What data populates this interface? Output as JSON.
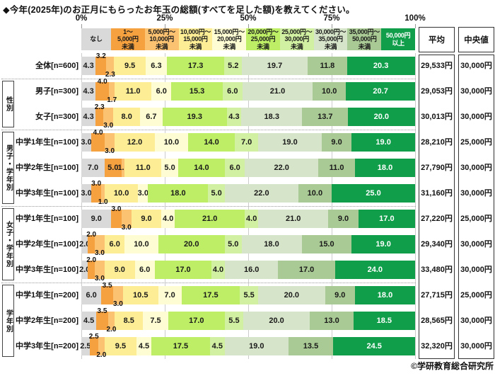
{
  "title": "◆今年(2025年)のお正月にもらったお年玉の総額(すべてを足した額)を教えてください。",
  "footer": "©学研教育総合研究所",
  "columns": {
    "mean": "平均",
    "median": "中央値"
  },
  "axis": {
    "ticks": [
      "0%",
      "25%",
      "50%",
      "75%",
      "100%"
    ]
  },
  "chart_data": {
    "type": "bar",
    "stacked": true,
    "orientation": "horizontal",
    "unit": "%",
    "xlim": [
      0,
      100
    ],
    "legend": [
      {
        "label": "なし",
        "color": "#d9d9d9",
        "text_color": "#1a1a1a"
      },
      {
        "label": "1～\n5,000円\n未満",
        "color": "#f6a13f",
        "text_color": "#1a1a1a"
      },
      {
        "label": "5,000円～\n10,000円\n未満",
        "color": "#fbc271",
        "text_color": "#1a1a1a"
      },
      {
        "label": "10,000円～\n15,000円\n未満",
        "color": "#fdee96",
        "text_color": "#1a1a1a"
      },
      {
        "label": "15,000円～\n20,000円\n未満",
        "color": "#fdfcd2",
        "text_color": "#1a1a1a"
      },
      {
        "label": "20,000円～\n25,000円\n未満",
        "color": "#bdee66",
        "text_color": "#1a1a1a"
      },
      {
        "label": "25,000円～\n30,000円\n未満",
        "color": "#d2f0a2",
        "text_color": "#1a1a1a"
      },
      {
        "label": "30,000円～\n35,000円\n未満",
        "color": "#d6e4c9",
        "text_color": "#1a1a1a"
      },
      {
        "label": "35,000円～\n50,000円\n未満",
        "color": "#a9ca94",
        "text_color": "#1a1a1a"
      },
      {
        "label": "50,000円\n以上",
        "color": "#119e4b",
        "text_color": "#ffffff",
        "value_color": "#ffffff"
      }
    ],
    "groups": [
      {
        "label": "",
        "rows": [
          {
            "label": "全体[n=600]",
            "values": [
              4.3,
              3.2,
              2.3,
              9.5,
              6.3,
              17.3,
              5.2,
              19.7,
              11.8,
              20.3
            ],
            "mean": "29,533円",
            "median": "30,000円",
            "callouts": {
              "1": "up",
              "2": "down"
            }
          }
        ]
      },
      {
        "label": "性別",
        "rows": [
          {
            "label": "男子[n=300]",
            "values": [
              4.3,
              4.0,
              1.7,
              11.0,
              6.0,
              15.3,
              6.0,
              21.0,
              10.0,
              20.7
            ],
            "mean": "29,053円",
            "median": "30,000円",
            "callouts": {
              "1": "up",
              "2": "down"
            }
          },
          {
            "label": "女子[n=300]",
            "values": [
              4.3,
              2.3,
              3.0,
              8.0,
              6.7,
              19.3,
              4.3,
              18.3,
              13.7,
              20.0
            ],
            "mean": "30,013円",
            "median": "30,000円",
            "callouts": {
              "1": "up",
              "2": "down"
            }
          }
        ]
      },
      {
        "label": "男子・学年別",
        "rows": [
          {
            "label": "中学1年生[n=100]",
            "values": [
              3.0,
              4.0,
              3.0,
              12.0,
              10.0,
              14.0,
              7.0,
              19.0,
              9.0,
              19.0
            ],
            "mean": "28,210円",
            "median": "25,000円",
            "callouts": {
              "1": "up",
              "2": "down"
            }
          },
          {
            "label": "中学2年生[n=100]",
            "values": [
              7.0,
              5.0,
              1.0,
              11.0,
              5.0,
              14.0,
              6.0,
              22.0,
              11.0,
              18.0
            ],
            "mean": "27,790円",
            "median": "30,000円",
            "callouts": {}
          },
          {
            "label": "中学3年生[n=100]",
            "values": [
              3.0,
              3.0,
              1.0,
              10.0,
              3.0,
              18.0,
              5.0,
              22.0,
              10.0,
              25.0
            ],
            "mean": "31,160円",
            "median": "30,000円",
            "callouts": {
              "1": "up",
              "2": "down"
            }
          }
        ]
      },
      {
        "label": "女子・学年別",
        "rows": [
          {
            "label": "中学1年生[n=100]",
            "values": [
              9.0,
              3.0,
              3.0,
              9.0,
              4.0,
              21.0,
              4.0,
              21.0,
              9.0,
              17.0
            ],
            "mean": "27,220円",
            "median": "25,000円",
            "callouts": {
              "1": "up",
              "2": "down"
            }
          },
          {
            "label": "中学2年生[n=100]",
            "values": [
              2.0,
              2.0,
              3.0,
              6.0,
              10.0,
              20.0,
              5.0,
              18.0,
              15.0,
              19.0
            ],
            "mean": "29,340円",
            "median": "30,000円",
            "callouts": {
              "1": "up",
              "2": "down"
            }
          },
          {
            "label": "中学3年生[n=100]",
            "values": [
              2.0,
              2.0,
              3.0,
              9.0,
              6.0,
              17.0,
              4.0,
              16.0,
              17.0,
              24.0
            ],
            "mean": "33,480円",
            "median": "30,000円",
            "callouts": {
              "1": "up",
              "2": "down"
            }
          }
        ]
      },
      {
        "label": "学年別",
        "rows": [
          {
            "label": "中学1年生[n=200]",
            "values": [
              6.0,
              3.5,
              3.0,
              10.5,
              7.0,
              17.5,
              5.5,
              20.0,
              9.0,
              18.0
            ],
            "mean": "27,715円",
            "median": "25,000円",
            "callouts": {
              "1": "up",
              "2": "down"
            }
          },
          {
            "label": "中学2年生[n=200]",
            "values": [
              4.5,
              3.5,
              2.0,
              8.5,
              7.5,
              17.0,
              5.5,
              20.0,
              13.0,
              18.5
            ],
            "mean": "28,565円",
            "median": "30,000円",
            "callouts": {
              "1": "up",
              "2": "down"
            }
          },
          {
            "label": "中学3年生[n=200]",
            "values": [
              2.5,
              2.5,
              2.0,
              9.5,
              4.5,
              17.5,
              4.5,
              19.0,
              13.5,
              24.5
            ],
            "mean": "32,320円",
            "median": "30,000円",
            "callouts": {
              "1": "up",
              "2": "down"
            }
          }
        ]
      }
    ]
  }
}
